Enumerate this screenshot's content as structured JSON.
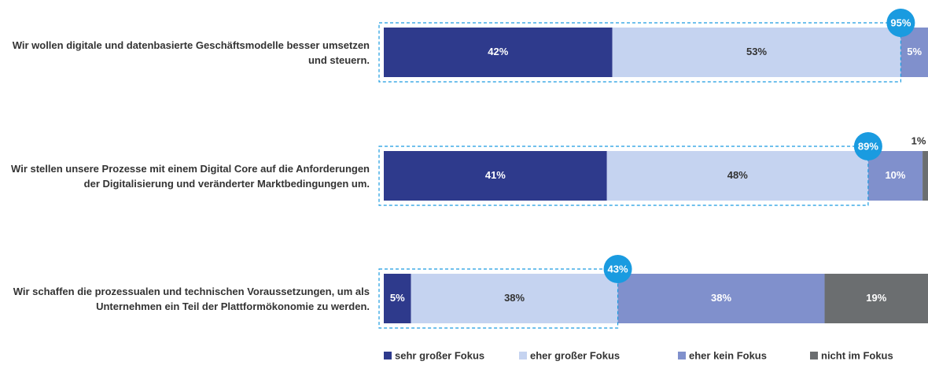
{
  "chart_data": {
    "type": "stacked_bar_horizontal",
    "categories": [
      "Wir wollen digitale und datenbasierte Geschäftsmodelle besser umsetzen und steuern.",
      "Wir stellen unsere Prozesse mit einem Digital Core auf die Anforderungen der Digitalisierung und veränderter Marktbedingungen um.",
      "Wir schaffen die prozessualen und technischen Voraussetzungen, um als Unternehmen ein Teil der Plattformökonomie zu werden."
    ],
    "series": [
      {
        "name": "sehr großer Fokus",
        "color": "#2e3a8c",
        "label_color": "#ffffff",
        "values": [
          42,
          41,
          5
        ],
        "value_labels": [
          "42%",
          "41%",
          "5%"
        ]
      },
      {
        "name": "eher großer Fokus",
        "color": "#c5d3f0",
        "label_color": "#333333",
        "values": [
          53,
          48,
          38
        ],
        "value_labels": [
          "53%",
          "48%",
          "38%"
        ]
      },
      {
        "name": "eher kein Fokus",
        "color": "#8090cc",
        "label_color": "#ffffff",
        "values": [
          5,
          10,
          38
        ],
        "value_labels": [
          "5%",
          "10%",
          "38%"
        ]
      },
      {
        "name": "nicht im Fokus",
        "color": "#6b6e70",
        "label_color": "#ffffff",
        "values": [
          0,
          1,
          19
        ],
        "value_labels": [
          null,
          "1%",
          "19%"
        ]
      }
    ],
    "totals": {
      "values": [
        95,
        89,
        43
      ],
      "labels": [
        "95%",
        "89%",
        "43%"
      ],
      "color": "#1a9be0"
    },
    "xlim": [
      0,
      100
    ]
  }
}
